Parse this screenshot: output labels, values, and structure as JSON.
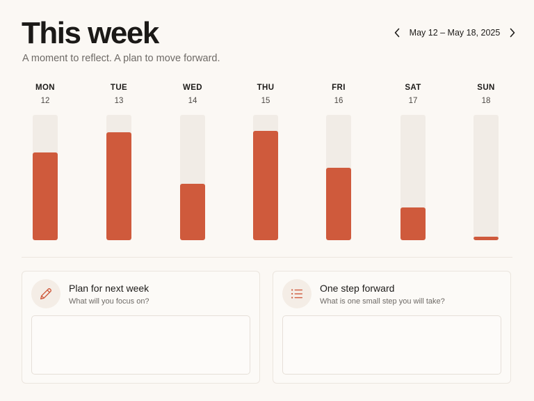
{
  "header": {
    "title": "This week",
    "subtitle": "A moment to reflect. A plan to move forward.",
    "date_range": "May 12 – May 18, 2025"
  },
  "icons": {
    "prev": "chevron-left-icon",
    "next": "chevron-right-icon",
    "plan": "pencil-icon",
    "step": "list-icon"
  },
  "colors": {
    "accent": "#cf5a3c",
    "track": "#f1ece6",
    "background": "#fbf8f4"
  },
  "days": [
    {
      "name": "MON",
      "date": "12",
      "level": 0.7
    },
    {
      "name": "TUE",
      "date": "13",
      "level": 0.86
    },
    {
      "name": "WED",
      "date": "14",
      "level": 0.45
    },
    {
      "name": "THU",
      "date": "15",
      "level": 0.87
    },
    {
      "name": "FRI",
      "date": "16",
      "level": 0.58
    },
    {
      "name": "SAT",
      "date": "17",
      "level": 0.26
    },
    {
      "name": "SUN",
      "date": "18",
      "level": 0.03
    }
  ],
  "cards": {
    "plan": {
      "title": "Plan for next week",
      "subtitle": "What will you focus on?",
      "value": ""
    },
    "step": {
      "title": "One step forward",
      "subtitle": "What is one small step you will take?",
      "value": ""
    }
  }
}
